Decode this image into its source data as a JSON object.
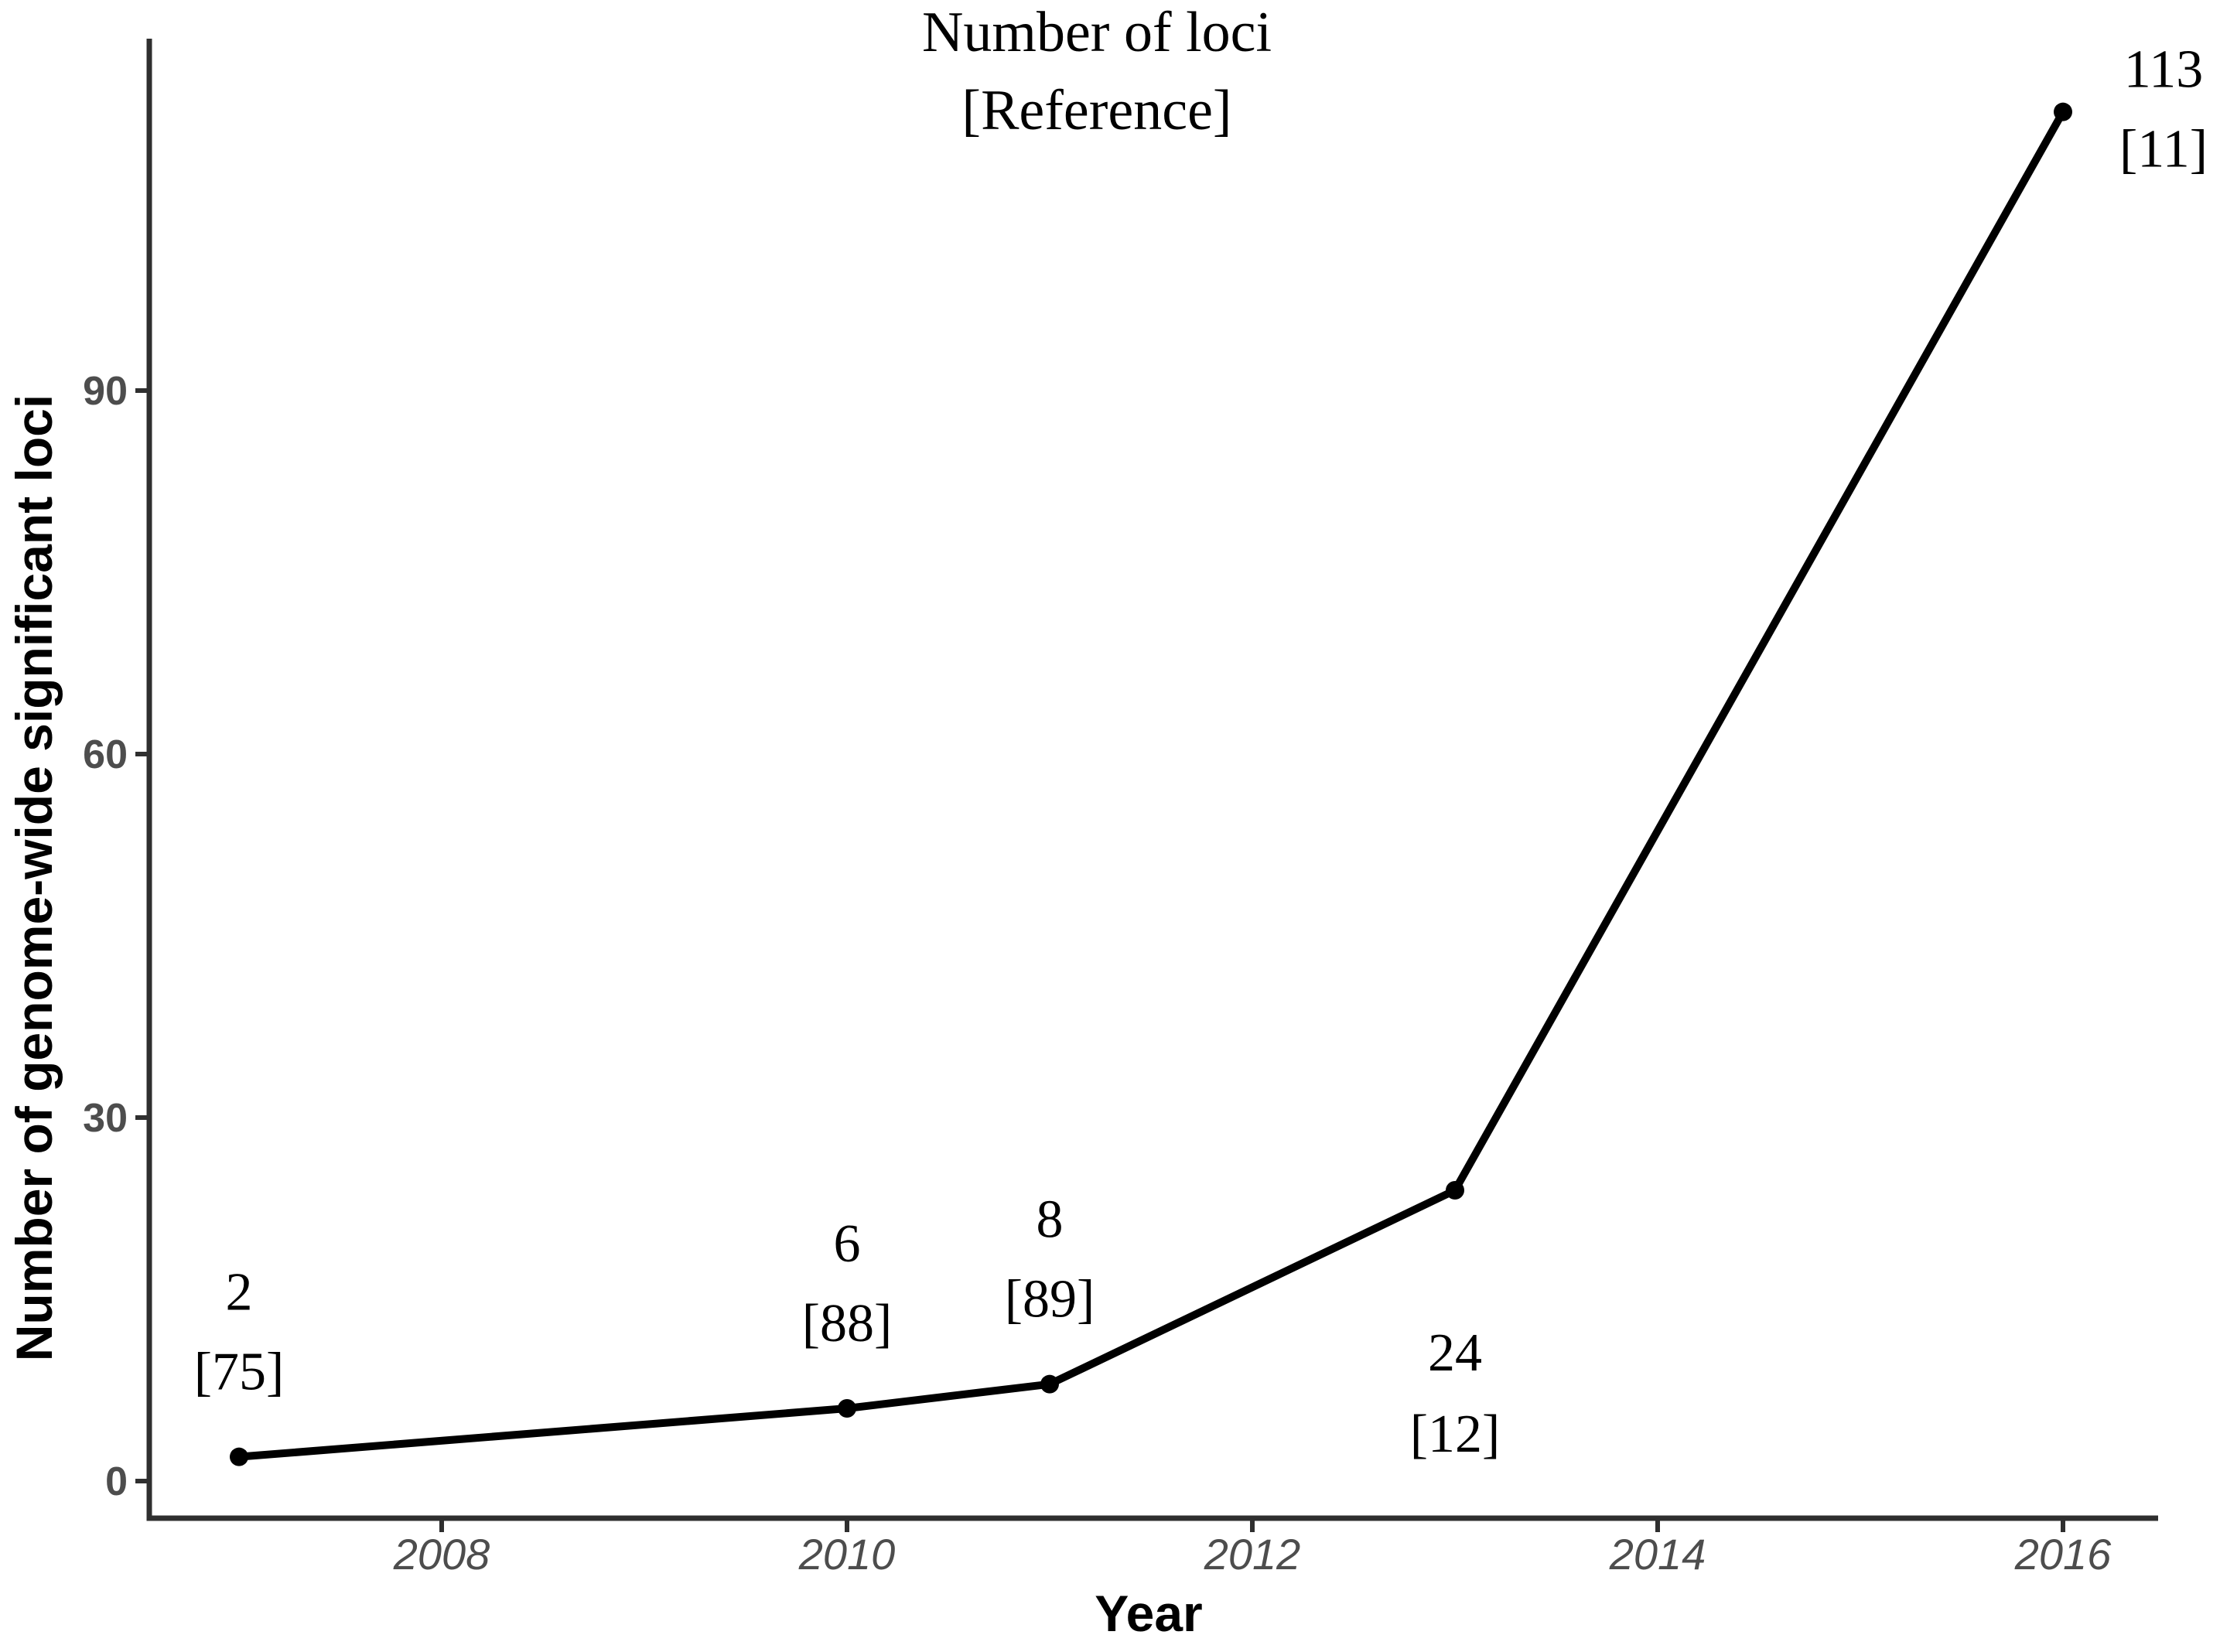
{
  "chart_data": {
    "type": "line",
    "title_lines": [
      "Number of loci",
      "[Reference]"
    ],
    "xlabel": "Year",
    "ylabel": "Number of genome-wide significant loci",
    "x_ticks": [
      2008,
      2010,
      2012,
      2014,
      2016
    ],
    "y_ticks": [
      0,
      30,
      60,
      90
    ],
    "xlim": [
      2006.6,
      2016.5
    ],
    "ylim": [
      0,
      116
    ],
    "grid": false,
    "legend": "none",
    "points": [
      {
        "year": 2007,
        "value": 2,
        "reference": "[75]",
        "label_placement": "above"
      },
      {
        "year": 2010,
        "value": 6,
        "reference": "[88]",
        "label_placement": "above"
      },
      {
        "year": 2011,
        "value": 8,
        "reference": "[89]",
        "label_placement": "above"
      },
      {
        "year": 2013,
        "value": 24,
        "reference": "[12]",
        "label_placement": "below"
      },
      {
        "year": 2016,
        "value": 113,
        "reference": "[11]",
        "label_placement": "right"
      }
    ],
    "colors": {
      "line": "#000000",
      "point": "#000000",
      "axis": "#2f2f2f",
      "tick_label": "#4d4d4d",
      "annotation_text": "#000000"
    }
  }
}
